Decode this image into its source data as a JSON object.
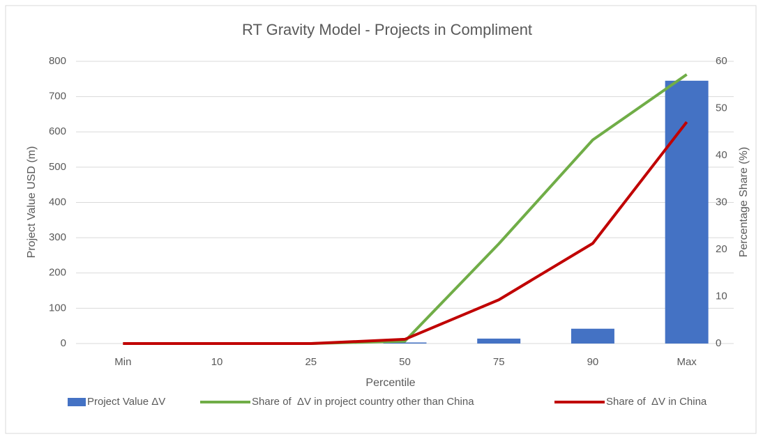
{
  "chart_data": {
    "type": "bar",
    "title": "RT Gravity Model - Projects in Compliment",
    "x_label": "Percentile",
    "y_label": "Project Value USD (m)",
    "y2_label": "Percentage Share (%)",
    "categories": [
      "Min",
      "10",
      "25",
      "50",
      "75",
      "90",
      "Max"
    ],
    "series": [
      {
        "name": "Project Value ΔV",
        "type": "bar",
        "color": "#4472c4",
        "values": [
          0,
          0,
          0,
          3,
          14,
          42,
          745
        ]
      },
      {
        "name": "Share of  ΔV in project country other than China",
        "type": "line",
        "axis": "y2",
        "color": "#70ad47",
        "values": [
          0,
          0,
          0,
          0.5,
          21.2,
          43.3,
          57.2
        ]
      },
      {
        "name": "Share of  ΔV in China",
        "type": "line",
        "axis": "y2",
        "color": "#c00000",
        "values": [
          0,
          0,
          0,
          0.9,
          9.3,
          21.3,
          47.1
        ]
      }
    ],
    "ylim": [
      0,
      800
    ],
    "yticks": [
      0,
      100,
      200,
      300,
      400,
      500,
      600,
      700,
      800
    ],
    "y2lim": [
      0,
      60
    ],
    "y2ticks": [
      0,
      10,
      20,
      30,
      40,
      50,
      60
    ],
    "grid": true,
    "legend": "bottom"
  }
}
